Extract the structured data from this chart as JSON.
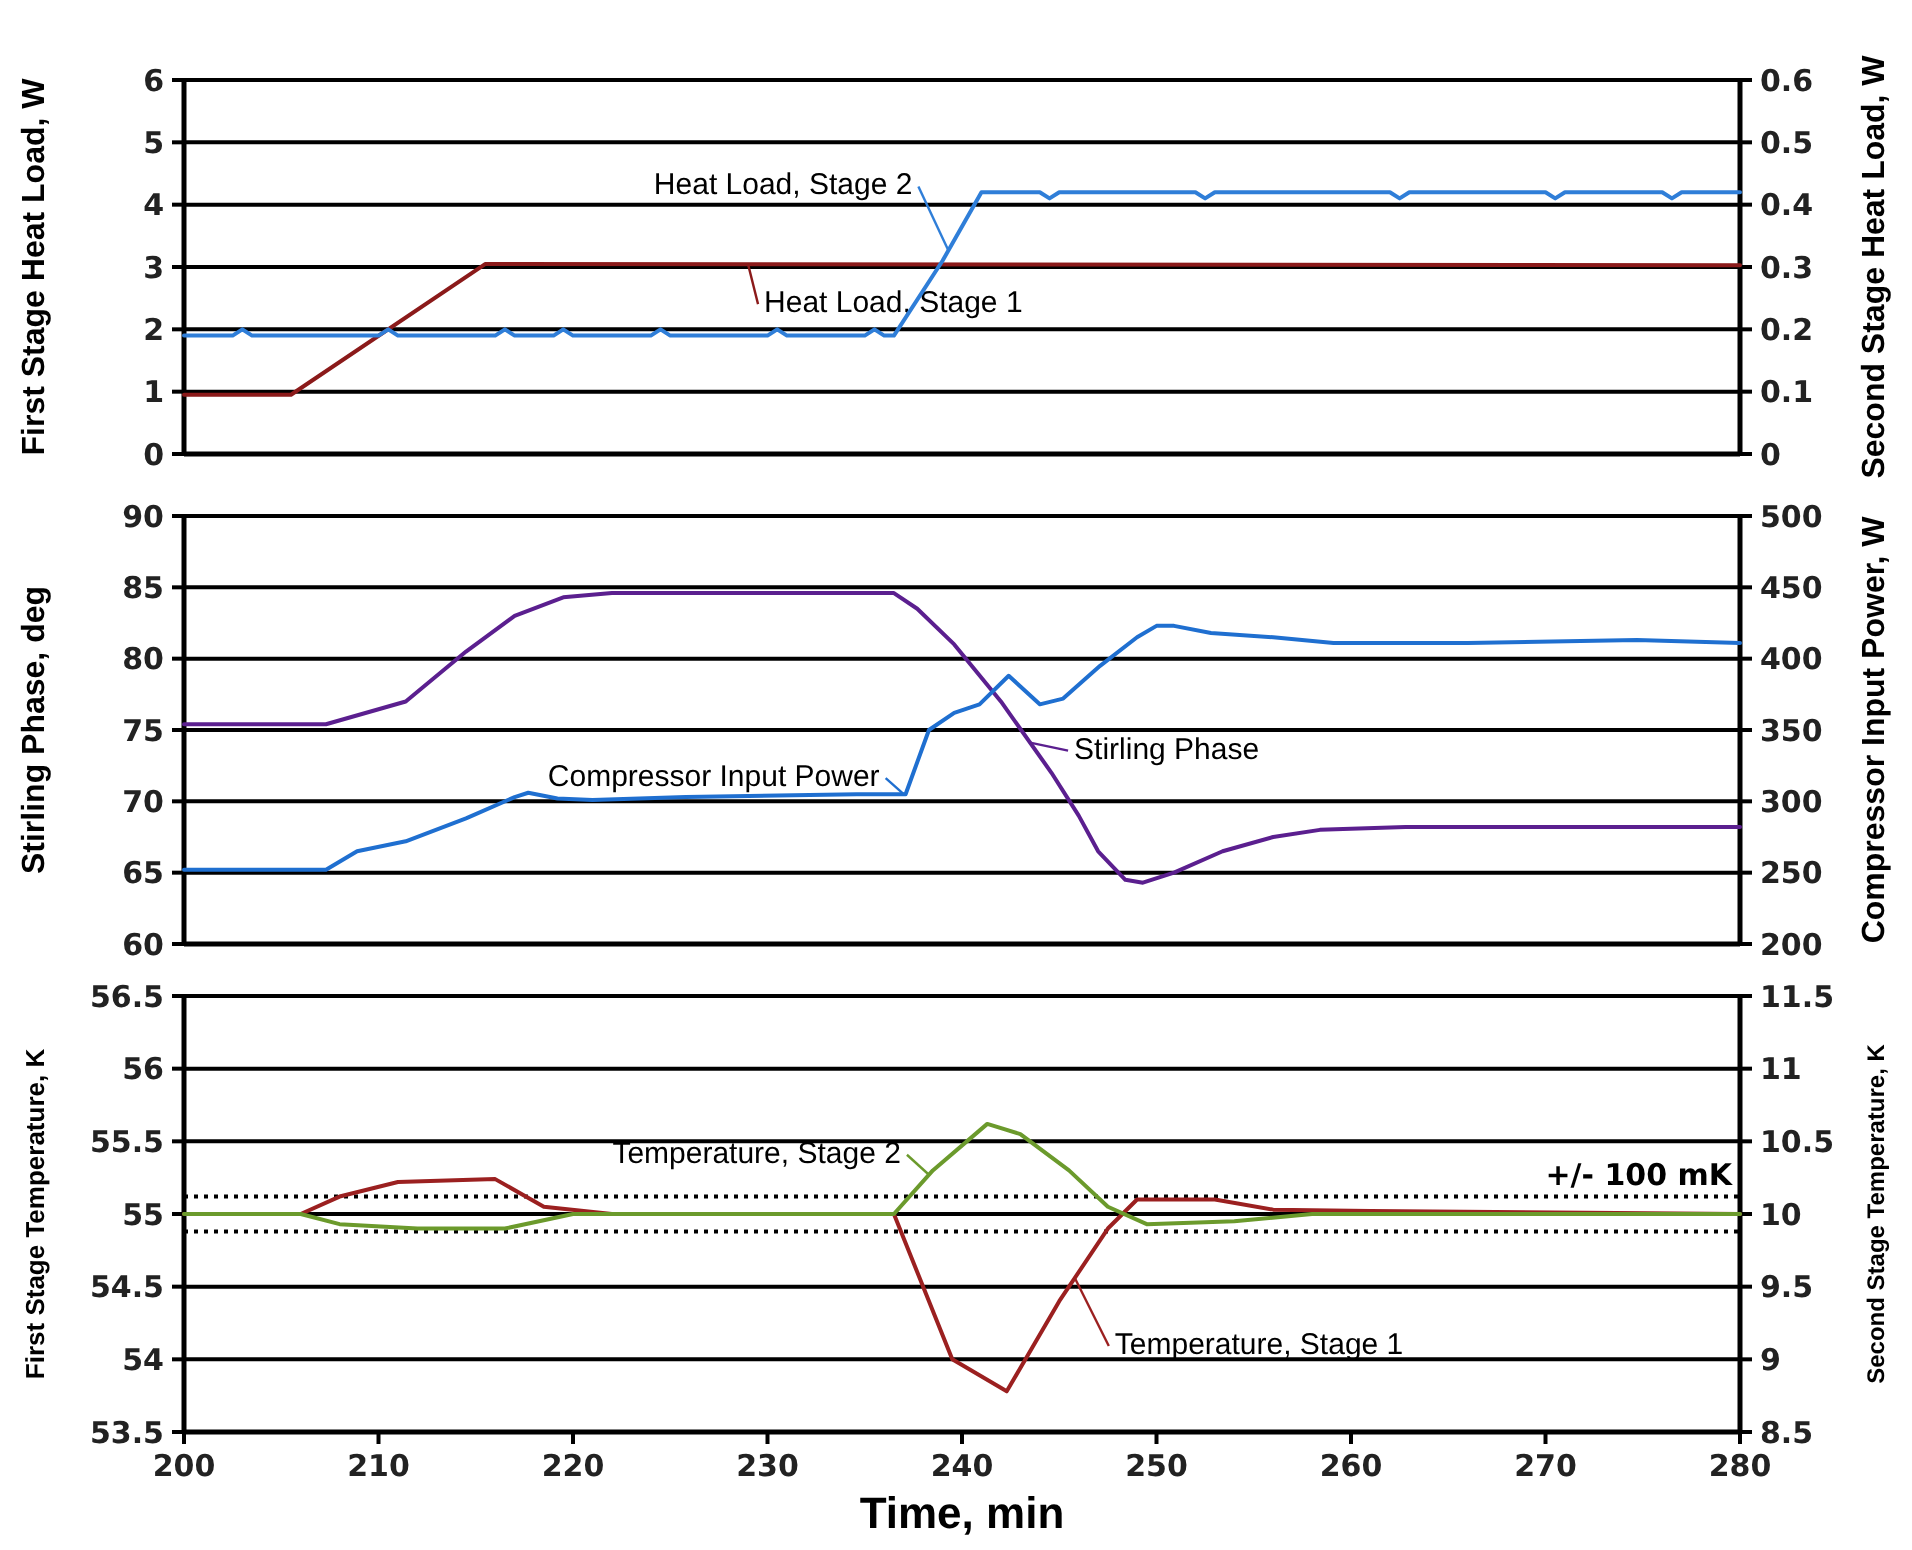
{
  "chart_data": [
    {
      "type": "line",
      "ylabel": "First Stage Heat Load, W",
      "y2label": "Second Stage Heat Load, W",
      "xlim": [
        200,
        280
      ],
      "ylim": [
        0,
        6
      ],
      "yticks": [
        0,
        1,
        2,
        3,
        4,
        5,
        6
      ],
      "y2lim": [
        0,
        0.6
      ],
      "y2ticks": [
        {
          "value": 0,
          "label": "0"
        },
        {
          "value": 0.1,
          "label": "0.1"
        },
        {
          "value": 0.2,
          "label": "0.2"
        },
        {
          "value": 0.3,
          "label": "0.3"
        },
        {
          "value": 0.4,
          "label": "0.4"
        },
        {
          "value": 0.5,
          "label": "0.5"
        },
        {
          "value": 0.6,
          "label": "0.6"
        }
      ],
      "grid": "y",
      "tick_labels": [
        "y",
        "y2"
      ],
      "series": [
        {
          "name": "Heat Load, Stage 1",
          "color": "#8b1a1a",
          "x": [
            200,
            205.5,
            215.5,
            280
          ],
          "values": [
            0.95,
            0.95,
            3.05,
            3.03
          ]
        },
        {
          "name": "Heat Load, Stage 2",
          "color": "#2f7ed8",
          "axis": "y2",
          "x": [
            200,
            202.5,
            203,
            203.5,
            210,
            210.5,
            211,
            216,
            216.5,
            217,
            219,
            219.5,
            220,
            224,
            224.5,
            225,
            230,
            230.5,
            231,
            235,
            235.5,
            236,
            236.5,
            239,
            241,
            244,
            244.5,
            245,
            252,
            252.5,
            253,
            262,
            262.5,
            263,
            270,
            270.5,
            271,
            276,
            276.5,
            277,
            280
          ],
          "values": [
            0.19,
            0.19,
            0.2,
            0.19,
            0.19,
            0.2,
            0.19,
            0.19,
            0.2,
            0.19,
            0.19,
            0.2,
            0.19,
            0.19,
            0.2,
            0.19,
            0.19,
            0.2,
            0.19,
            0.19,
            0.2,
            0.19,
            0.19,
            0.31,
            0.42,
            0.42,
            0.41,
            0.42,
            0.42,
            0.41,
            0.42,
            0.42,
            0.41,
            0.42,
            0.42,
            0.41,
            0.42,
            0.42,
            0.41,
            0.42,
            0.42
          ]
        }
      ]
    },
    {
      "type": "line",
      "ylabel": "Stirling Phase, deg",
      "y2label": "Compressor Input Power, W",
      "xlim": [
        200,
        280
      ],
      "ylim": [
        60,
        90
      ],
      "yticks": [
        60,
        65,
        70,
        75,
        80,
        85,
        90
      ],
      "y2lim": [
        200,
        500
      ],
      "y2ticks": [
        200,
        250,
        300,
        350,
        400,
        450,
        500
      ],
      "grid": "y",
      "tick_labels": [
        "y",
        "y2"
      ],
      "series": [
        {
          "name": "Stirling Phase",
          "color": "#5b1f8f",
          "x": [
            200,
            207.3,
            211.4,
            214.5,
            217,
            219.5,
            222,
            236.5,
            237.7,
            239.6,
            242,
            244.6,
            246,
            247,
            248.4,
            249.3,
            250.9,
            253.4,
            256,
            258.4,
            262.8,
            280
          ],
          "values": [
            75.4,
            75.4,
            77,
            80.5,
            83,
            84.3,
            84.6,
            84.6,
            83.5,
            81,
            77,
            72,
            69,
            66.5,
            64.5,
            64.3,
            65,
            66.5,
            67.5,
            68,
            68.2,
            68.2
          ]
        },
        {
          "name": "Compressor Input Power",
          "color": "#1f6fd0",
          "axis": "y2",
          "x": [
            200,
            207.3,
            208.9,
            211.4,
            214.5,
            217,
            217.7,
            219.2,
            221,
            225.8,
            234.6,
            237.1,
            238.3,
            239.6,
            240.9,
            242.4,
            244,
            245.2,
            247.1,
            249,
            250,
            250.9,
            252.8,
            256,
            259.1,
            266,
            274.7,
            280
          ],
          "values": [
            252,
            252,
            265,
            272,
            288,
            303,
            306,
            302,
            301,
            303,
            305,
            305,
            350,
            362,
            368,
            388,
            368,
            372,
            395,
            415,
            423,
            423,
            418,
            415,
            411,
            411,
            413,
            411
          ]
        }
      ]
    },
    {
      "type": "line",
      "xlabel": "Time, min",
      "ylabel": "First Stage Temperature, K",
      "y2label": "Second Stage Temperature, K",
      "xlim": [
        200,
        280
      ],
      "xticks": [
        200,
        210,
        220,
        230,
        240,
        250,
        260,
        270,
        280
      ],
      "ylim": [
        53.5,
        56.5
      ],
      "yticks": [
        53.5,
        54,
        54.5,
        55,
        55.5,
        56,
        56.5
      ],
      "y2lim": [
        8.5,
        11.5
      ],
      "y2ticks": [
        8.5,
        9,
        9.5,
        10,
        10.5,
        11,
        11.5
      ],
      "grid": "y",
      "ref_lines": [
        {
          "axis": "y",
          "value": 55.12,
          "label": "+/- 100 mK",
          "color": "#000000",
          "line_style": "dotted"
        },
        {
          "axis": "y",
          "value": 54.88,
          "label": null,
          "color": "#000000",
          "line_style": "dotted"
        }
      ],
      "series": [
        {
          "name": "Temperature, Stage 1",
          "color": "#9b2020",
          "x": [
            200,
            206,
            208,
            211,
            216,
            218.5,
            222,
            236.5,
            239.5,
            242.3,
            245,
            247.5,
            249,
            253,
            256,
            261,
            280
          ],
          "values": [
            55,
            55,
            55.12,
            55.22,
            55.24,
            55.05,
            55,
            55,
            54,
            53.78,
            54.4,
            54.9,
            55.1,
            55.1,
            55.03,
            55.02,
            55
          ]
        },
        {
          "name": "Temperature, Stage 2",
          "color": "#6b9a2c",
          "axis": "y2",
          "x": [
            200,
            206,
            208,
            212,
            216.5,
            220,
            236.5,
            238.5,
            241.3,
            243,
            245.5,
            247.5,
            249.5,
            254,
            258,
            280
          ],
          "values": [
            10,
            10,
            9.93,
            9.9,
            9.9,
            10,
            10,
            10.3,
            10.62,
            10.55,
            10.3,
            10.05,
            9.93,
            9.95,
            10,
            10
          ]
        }
      ]
    }
  ]
}
